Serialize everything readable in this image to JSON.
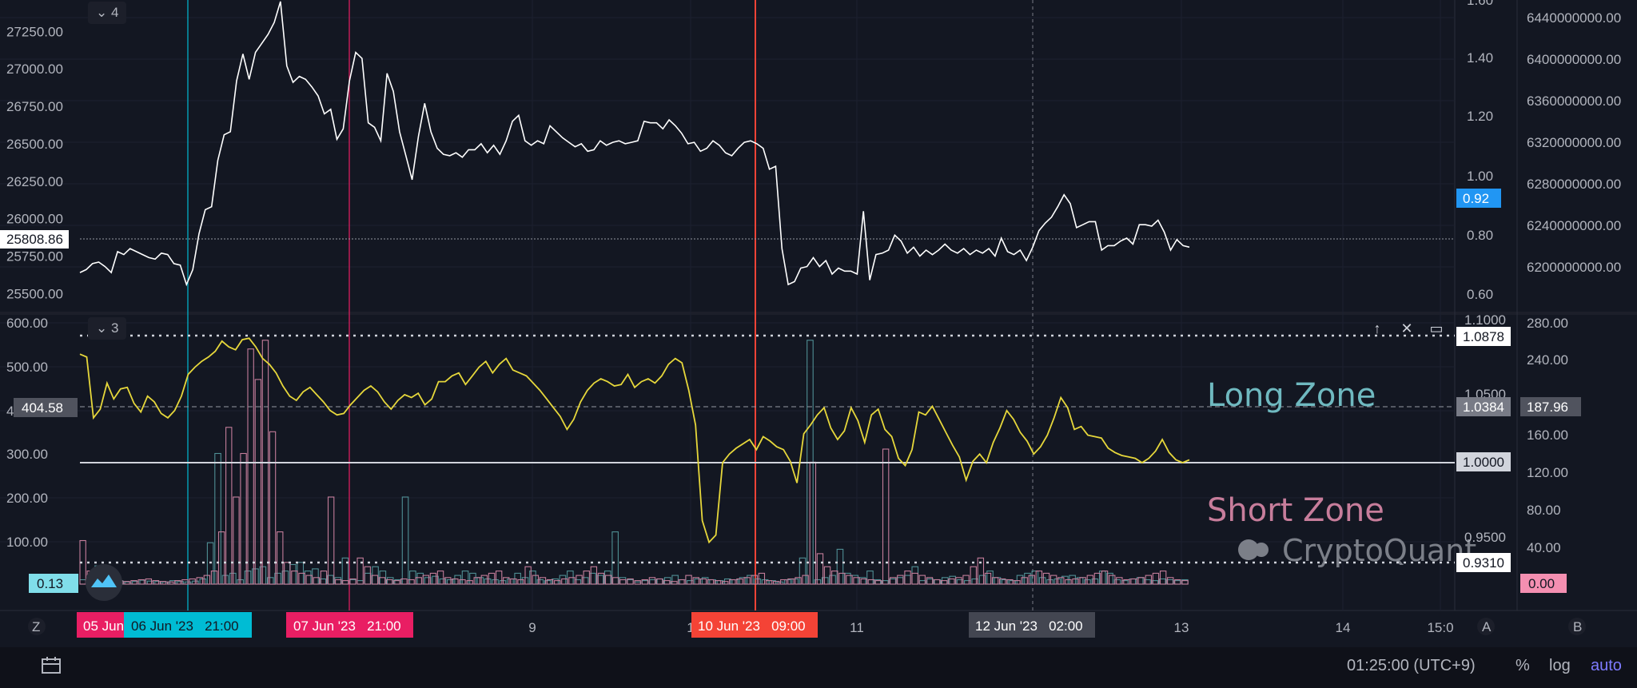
{
  "chart_data": [
    {
      "type": "line",
      "pane": "price",
      "series_count_label": "4",
      "left_axis_ticks": [
        "27250.00",
        "27000.00",
        "26750.00",
        "26500.00",
        "26250.00",
        "26000.00",
        "25750.00",
        "25500.00"
      ],
      "mid_axis_ticks": [
        "1.60",
        "1.40",
        "1.20",
        "1.00",
        "0.80",
        "0.60"
      ],
      "right_axis_ticks": [
        "6440000000.00",
        "6400000000.00",
        "6360000000.00",
        "6320000000.00",
        "6280000000.00",
        "6240000000.00",
        "6200000000.00"
      ],
      "ylim": [
        25390,
        27460
      ],
      "series": [
        {
          "color": "#ffffff",
          "values": [
            25640,
            25660,
            25700,
            25710,
            25680,
            25640,
            25780,
            25760,
            25800,
            25780,
            25760,
            25740,
            25730,
            25770,
            25760,
            25700,
            25690,
            25560,
            25660,
            25900,
            26060,
            26080,
            26390,
            26560,
            26580,
            26920,
            27100,
            26930,
            27110,
            27170,
            27230,
            27310,
            27450,
            27020,
            26910,
            26950,
            26930,
            26880,
            26820,
            26700,
            26730,
            26530,
            26600,
            26920,
            27110,
            27070,
            26640,
            26610,
            26520,
            26970,
            26850,
            26580,
            26420,
            26260,
            26550,
            26770,
            26580,
            26470,
            26430,
            26420,
            26440,
            26410,
            26460,
            26460,
            26500,
            26440,
            26490,
            26430,
            26520,
            26650,
            26690,
            26520,
            26490,
            26520,
            26500,
            26620,
            26580,
            26540,
            26510,
            26480,
            26500,
            26450,
            26460,
            26520,
            26490,
            26510,
            26520,
            26500,
            26510,
            26520,
            26650,
            26640,
            26640,
            26600,
            26660,
            26620,
            26570,
            26500,
            26510,
            26450,
            26470,
            26520,
            26490,
            26440,
            26420,
            26470,
            26510,
            26520,
            26500,
            26470,
            26330,
            26350,
            25800,
            25560,
            25580,
            25670,
            25680,
            25740,
            25680,
            25720,
            25630,
            25670,
            25650,
            25650,
            25630,
            26050,
            25590,
            25760,
            25770,
            25790,
            25890,
            25850,
            25770,
            25810,
            25750,
            25790,
            25760,
            25790,
            25830,
            25790,
            25770,
            25800,
            25760,
            25790,
            25770,
            25800,
            25750,
            25870,
            25780,
            25760,
            25790,
            25720,
            25810,
            25920,
            25970,
            26010,
            26080,
            26160,
            26100,
            25940,
            25960,
            25980,
            25980,
            25790,
            25820,
            25820,
            25850,
            25870,
            25830,
            25960,
            25960,
            25950,
            25990,
            25910,
            25790,
            25860,
            25820,
            25810
          ]
        }
      ]
    },
    {
      "type": "bar",
      "pane": "indicator",
      "series_count_label": "3",
      "left_axis_ticks": [
        "600.00",
        "500.00",
        "400.00",
        "300.00",
        "200.00",
        "100.00"
      ],
      "mid_axis_ticks": [
        "1.1000",
        "1.0500",
        "0.9500"
      ],
      "right_axis_ticks": [
        "280.00",
        "240.00",
        "160.00",
        "120.00",
        "80.00",
        "40.00"
      ],
      "level_lines": [
        {
          "value": "1.0878",
          "style": "dotted"
        },
        {
          "value": "1.0384",
          "style": "dashed"
        },
        {
          "value": "1.0000",
          "style": "solid"
        },
        {
          "value": "0.9310",
          "style": "dotted"
        }
      ],
      "annotations": [
        {
          "text": "Long Zone",
          "color": "#6fb9c0"
        },
        {
          "text": "Short Zone",
          "color": "#c77d9b"
        }
      ],
      "watermark": "CryptoQuant",
      "series": [
        {
          "color": "#e6d73b",
          "type": "line",
          "values": [
            1.075,
            1.073,
            1.031,
            1.037,
            1.055,
            1.044,
            1.051,
            1.052,
            1.041,
            1.035,
            1.046,
            1.042,
            1.034,
            1.031,
            1.036,
            1.046,
            1.061,
            1.066,
            1.07,
            1.073,
            1.077,
            1.084,
            1.08,
            1.078,
            1.085,
            1.086,
            1.08,
            1.072,
            1.068,
            1.062,
            1.053,
            1.046,
            1.043,
            1.049,
            1.052,
            1.047,
            1.042,
            1.036,
            1.033,
            1.034,
            1.04,
            1.045,
            1.05,
            1.053,
            1.049,
            1.042,
            1.037,
            1.043,
            1.047,
            1.045,
            1.048,
            1.04,
            1.044,
            1.056,
            1.056,
            1.06,
            1.062,
            1.054,
            1.06,
            1.066,
            1.07,
            1.062,
            1.068,
            1.072,
            1.064,
            1.062,
            1.06,
            1.055,
            1.05,
            1.044,
            1.038,
            1.032,
            1.023,
            1.03,
            1.042,
            1.05,
            1.055,
            1.058,
            1.056,
            1.053,
            1.054,
            1.061,
            1.052,
            1.056,
            1.058,
            1.055,
            1.06,
            1.068,
            1.072,
            1.069,
            1.05,
            1.026,
            0.96,
            0.945,
            0.95,
            1.0,
            1.006,
            1.01,
            1.013,
            1.016,
            1.009,
            1.018,
            1.015,
            1.011,
            1.009,
            1.001,
            0.986,
            1.02,
            1.026,
            1.033,
            1.038,
            1.024,
            1.016,
            1.022,
            1.038,
            1.029,
            1.014,
            1.033,
            1.037,
            1.023,
            1.018,
            1.003,
            0.998,
            1.009,
            1.035,
            1.033,
            1.039,
            1.03,
            1.021,
            1.012,
            1.004,
            0.988,
            1.001,
            1.006,
            1.0,
            1.014,
            1.024,
            1.036,
            1.03,
            1.021,
            1.015,
            1.006,
            1.011,
            1.019,
            1.031,
            1.045,
            1.038,
            1.023,
            1.025,
            1.019,
            1.018,
            1.017,
            1.01,
            1.007,
            1.005,
            1.004,
            1.003,
            1.0,
            1.003,
            1.008,
            1.016,
            1.007,
            1.002,
            1.0,
            1.002
          ]
        },
        {
          "color": "#4f8f94",
          "type": "bar",
          "values": [
            10,
            12,
            42,
            8,
            6,
            7,
            5,
            6,
            9,
            7,
            6,
            5,
            8,
            6,
            5,
            7,
            12,
            95,
            300,
            20,
            25,
            10,
            30,
            35,
            40,
            15,
            25,
            30,
            45,
            50,
            30,
            35,
            12,
            20,
            15,
            60,
            10,
            8,
            25,
            40,
            30,
            15,
            10,
            200,
            30,
            25,
            15,
            18,
            12,
            10,
            20,
            30,
            25,
            15,
            12,
            10,
            8,
            12,
            25,
            15,
            30,
            10,
            8,
            12,
            20,
            30,
            10,
            15,
            25,
            20,
            30,
            120,
            15,
            10,
            5,
            8,
            10,
            12,
            15,
            20,
            10,
            8,
            12,
            15,
            10,
            8,
            12,
            10,
            15,
            20,
            12,
            10,
            8,
            5,
            10,
            12,
            60,
            560,
            10,
            15,
            20,
            80,
            25,
            20,
            15,
            30,
            10,
            8,
            12,
            15,
            20,
            40,
            8,
            12,
            10,
            15,
            18,
            10,
            8,
            12,
            20,
            30,
            15,
            10,
            8,
            20,
            25,
            30,
            15,
            10,
            12,
            18,
            20,
            15,
            10,
            12,
            30,
            25,
            10,
            8,
            12,
            15,
            10,
            8,
            12,
            10,
            8,
            10
          ]
        },
        {
          "color": "#c47d9a",
          "type": "bar",
          "values": [
            100,
            30,
            20,
            15,
            10,
            8,
            6,
            8,
            10,
            12,
            8,
            6,
            5,
            8,
            10,
            12,
            15,
            20,
            30,
            120,
            360,
            200,
            300,
            540,
            470,
            560,
            350,
            120,
            50,
            30,
            25,
            20,
            15,
            30,
            200,
            10,
            8,
            12,
            60,
            40,
            20,
            15,
            10,
            8,
            12,
            10,
            15,
            20,
            25,
            30,
            15,
            12,
            10,
            8,
            15,
            20,
            25,
            30,
            15,
            12,
            10,
            40,
            20,
            15,
            10,
            8,
            12,
            15,
            20,
            30,
            40,
            25,
            20,
            15,
            10,
            12,
            8,
            10,
            15,
            12,
            8,
            6,
            10,
            20,
            15,
            12,
            10,
            8,
            6,
            10,
            12,
            15,
            20,
            25,
            8,
            6,
            10,
            12,
            15,
            20,
            280,
            70,
            40,
            30,
            25,
            20,
            15,
            12,
            10,
            8,
            310,
            15,
            20,
            30,
            25,
            20,
            15,
            10,
            8,
            12,
            15,
            20,
            40,
            60,
            25,
            15,
            12,
            10,
            8,
            15,
            20,
            30,
            25,
            20,
            15,
            10,
            12,
            15,
            20,
            25,
            30,
            20,
            15,
            10,
            12,
            15,
            20,
            25,
            30,
            15,
            10,
            8
          ]
        }
      ]
    }
  ],
  "pane_labels": {
    "price": "4",
    "indicator": "3"
  },
  "price_tags": {
    "left_price": "25808.86",
    "mid_price": "0.92",
    "left_indicator": "404.58",
    "level_upper": "1.0878",
    "level_long": "1.0384",
    "right_long": "187.96",
    "level_one": "1.0000",
    "level_short": "0.9310",
    "left_bottom": "0.13",
    "right_bottom": "0.00"
  },
  "time_axis": {
    "ticks": [
      "9",
      "1",
      "11",
      "13",
      "14",
      "15:0"
    ],
    "highlight_labels": [
      {
        "text": "05 Jun",
        "color": "#e91e63"
      },
      {
        "text": "06 Jun '23   21:00",
        "color": "#00bcd4"
      },
      {
        "text": "07 Jun '23   21:00",
        "color": "#e91e63"
      },
      {
        "text": "10 Jun '23   09:00",
        "color": "#f44336"
      },
      {
        "text": "12 Jun '23   02:00",
        "color": "#434651"
      }
    ],
    "scale_buttons": {
      "left": "Z",
      "mid": "A",
      "right": "B"
    }
  },
  "bottom_bar": {
    "time": "01:25:00 (UTC+9)",
    "percent": "%",
    "log": "log",
    "auto": "auto"
  },
  "pane_controls": {
    "up": "↑",
    "close": "✕",
    "maximize": "▭"
  }
}
